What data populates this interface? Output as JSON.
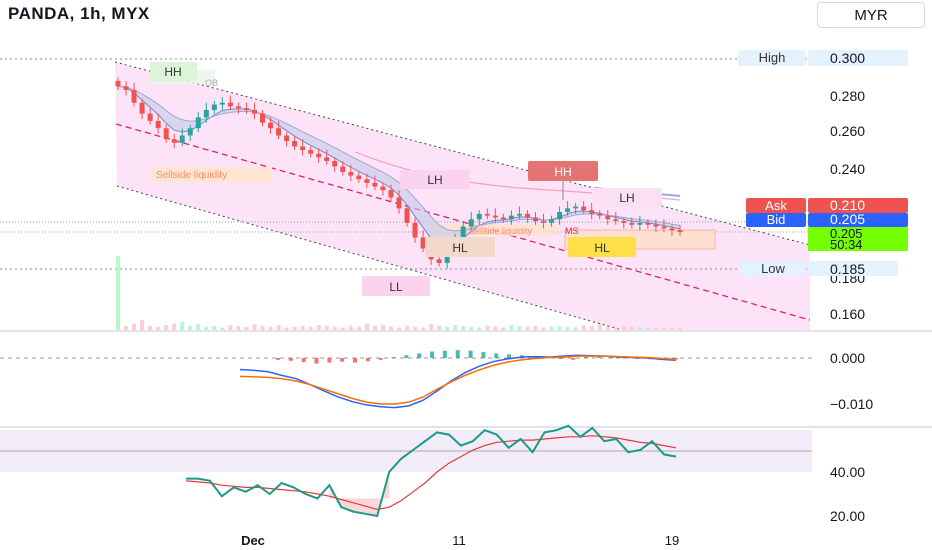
{
  "header": {
    "title": "PANDA, 1h, MYX",
    "currency": "MYR"
  },
  "price_axis": {
    "ticks": [
      "0.280",
      "0.260",
      "0.240",
      "0.160"
    ],
    "high_label": "High",
    "high_value": "0.300",
    "low_label": "Low",
    "low_value": "0.185",
    "ask_label": "Ask",
    "ask_value": "0.210",
    "bid_label": "Bid",
    "bid_value": "0.205",
    "last_value": "0.205",
    "countdown": "50:34",
    "partial_tick": "0.180"
  },
  "macd_axis": {
    "ticks": [
      "0.000",
      "−0.010"
    ]
  },
  "rsi_axis": {
    "ticks": [
      "40.00",
      "20.00"
    ]
  },
  "time_axis": {
    "ticks": [
      "Dec",
      "11",
      "19"
    ]
  },
  "annotations": {
    "hh": "HH",
    "ob": "OB",
    "lh1": "LH",
    "hh2": "HH",
    "lh2": "LH",
    "hl1": "HL",
    "hl2": "HL",
    "ll": "LL",
    "sellside1": "Sellside liquidity",
    "sellside2": "Sellside liquidity",
    "ms": "MS"
  },
  "colors": {
    "up": "#26a69a",
    "down": "#ef5350",
    "channel": "#f8c8f0",
    "macd": "#2962ff",
    "signal": "#ff6d00",
    "rsi": "#1a9b8a",
    "rsi_ma": "#e53935"
  },
  "chart_data": {
    "type": "candlestick",
    "symbol": "PANDA",
    "interval": "1h",
    "exchange": "MYX",
    "price_ylim": [
      0.155,
      0.305
    ],
    "high": 0.3,
    "low": 0.185,
    "ask": 0.21,
    "bid": 0.205,
    "last": 0.205,
    "close_series": [
      0.285,
      0.283,
      0.276,
      0.27,
      0.266,
      0.262,
      0.256,
      0.254,
      0.258,
      0.262,
      0.268,
      0.272,
      0.275,
      0.276,
      0.274,
      0.273,
      0.272,
      0.27,
      0.265,
      0.262,
      0.258,
      0.255,
      0.252,
      0.25,
      0.248,
      0.246,
      0.244,
      0.241,
      0.238,
      0.236,
      0.234,
      0.232,
      0.23,
      0.228,
      0.224,
      0.218,
      0.21,
      0.202,
      0.196,
      0.19,
      0.188,
      0.195,
      0.202,
      0.208,
      0.212,
      0.215,
      0.214,
      0.213,
      0.212,
      0.214,
      0.215,
      0.213,
      0.211,
      0.21,
      0.212,
      0.216,
      0.218,
      0.219,
      0.217,
      0.215,
      0.214,
      0.212,
      0.211,
      0.21,
      0.209,
      0.21,
      0.209,
      0.208,
      0.207,
      0.206,
      0.205
    ],
    "volume_series": [
      0.9,
      0.05,
      0.08,
      0.12,
      0.05,
      0.04,
      0.06,
      0.08,
      0.1,
      0.05,
      0.07,
      0.04,
      0.05,
      0.03,
      0.06,
      0.05,
      0.04,
      0.07,
      0.05,
      0.04,
      0.06,
      0.03,
      0.04,
      0.05,
      0.04,
      0.06,
      0.05,
      0.04,
      0.03,
      0.05,
      0.04,
      0.08,
      0.05,
      0.06,
      0.04,
      0.03,
      0.05,
      0.04,
      0.03,
      0.07,
      0.05,
      0.04,
      0.06,
      0.05,
      0.04,
      0.03,
      0.05,
      0.04,
      0.03,
      0.06,
      0.05,
      0.04,
      0.05,
      0.03,
      0.04,
      0.05,
      0.04,
      0.03,
      0.06,
      0.05,
      0.07,
      0.04,
      0.03,
      0.05,
      0.04,
      0.03,
      0.02,
      0.03,
      0.02,
      0.03,
      0.02
    ],
    "macd_ylim": [
      -0.0145,
      0.0025
    ],
    "macd_series": [
      -0.0025,
      -0.0027,
      -0.003,
      -0.0038,
      -0.0045,
      -0.0058,
      -0.0072,
      -0.0085,
      -0.0095,
      -0.0102,
      -0.0106,
      -0.0108,
      -0.0104,
      -0.0092,
      -0.0072,
      -0.005,
      -0.0032,
      -0.0018,
      -0.0008,
      -0.0002,
      0.0002,
      0.0003,
      0.0002,
      0.0004,
      0.0006,
      0.0005,
      0.0004,
      0.0002,
      0.0001,
      0.0,
      -0.0003,
      -0.0005
    ],
    "signal_series": [
      -0.004,
      -0.0041,
      -0.0042,
      -0.0045,
      -0.005,
      -0.0058,
      -0.0068,
      -0.0078,
      -0.0088,
      -0.0096,
      -0.01,
      -0.01,
      -0.0096,
      -0.0085,
      -0.0068,
      -0.0052,
      -0.0038,
      -0.0026,
      -0.0016,
      -0.0009,
      -0.0004,
      -0.0001,
      0.0001,
      0.0002,
      0.0004,
      0.0004,
      0.0004,
      0.0003,
      0.0002,
      0.0001,
      -0.0001,
      -0.0003
    ],
    "histogram_series": [
      -0.0004,
      -0.0006,
      -0.0009,
      -0.0012,
      -0.001,
      -0.0008,
      -0.001,
      -0.0007,
      -0.0004,
      0.0002,
      0.0006,
      0.001,
      0.0014,
      0.0016,
      0.0017,
      0.0016,
      0.0013,
      0.001,
      0.0008,
      0.0006,
      0.0004,
      0.0002,
      -0.0002,
      -0.0004,
      0.0002,
      0.0003,
      0.0002,
      0.0001,
      -0.0002,
      -0.0003,
      -0.0002,
      -0.0003
    ],
    "rsi_ylim": [
      14,
      64
    ],
    "rsi_series": [
      37,
      37,
      36,
      29,
      33,
      31,
      34,
      30,
      35,
      33,
      30,
      28,
      34,
      24,
      22,
      21,
      20,
      40,
      46,
      50,
      54,
      58,
      57,
      52,
      54,
      59,
      57,
      51,
      55,
      49,
      58,
      59,
      61,
      56,
      60,
      54,
      55,
      49,
      50,
      54,
      48,
      47
    ],
    "rsi_ma_series": [
      36,
      35.5,
      35,
      34,
      33.5,
      33,
      33,
      32.5,
      32,
      31.5,
      31,
      30,
      29,
      27.5,
      26,
      24.5,
      23,
      24,
      27,
      31,
      35,
      40,
      44,
      47,
      50,
      52,
      53.5,
      54,
      54.5,
      54.5,
      55,
      55.5,
      56,
      56,
      56.5,
      56,
      55.5,
      54.5,
      53.5,
      53,
      52,
      51
    ]
  }
}
